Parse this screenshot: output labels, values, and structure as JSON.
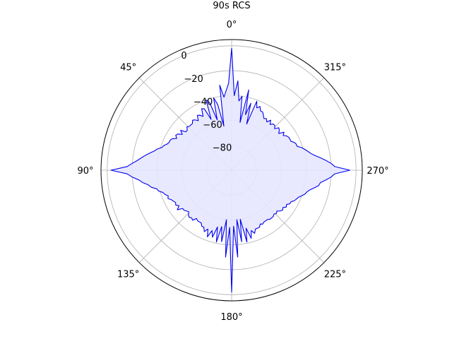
{
  "chart_data": {
    "type": "polar",
    "title": "90s RCS",
    "theta_direction": "counterclockwise",
    "theta_zero": "top",
    "theta_ticks": [
      "0°",
      "45°",
      "90°",
      "135°",
      "180°",
      "225°",
      "270°",
      "315°"
    ],
    "r_ticks": [
      "0",
      "−20",
      "−40",
      "−60",
      "−80"
    ],
    "r_tick_values": [
      0,
      -20,
      -40,
      -60,
      -80
    ],
    "rlim": [
      -100,
      5
    ],
    "grid": true,
    "fill": true,
    "colors": {
      "line": "#0000ee",
      "fill": "#e6e6ff",
      "grid": "#b0b0b0",
      "spine": "#000000"
    },
    "series": [
      {
        "theta_deg": [
          0,
          2,
          4,
          6,
          8,
          10,
          12,
          14,
          16,
          18,
          20,
          22,
          24,
          26,
          28,
          30,
          32,
          34,
          36,
          38,
          40,
          42,
          44,
          46,
          48,
          50,
          52,
          54,
          56,
          58,
          60,
          62,
          64,
          66,
          68,
          70,
          72,
          74,
          76,
          78,
          80,
          82,
          84,
          86,
          88,
          90,
          92,
          94,
          96,
          98,
          100,
          102,
          104,
          106,
          108,
          110,
          112,
          114,
          116,
          118,
          120,
          122,
          124,
          126,
          128,
          130,
          132,
          134,
          136,
          138,
          140,
          142,
          144,
          146,
          148,
          150,
          152,
          154,
          156,
          158,
          160,
          162,
          164,
          166,
          168,
          170,
          172,
          174,
          176,
          178,
          180,
          182,
          184,
          186,
          188,
          190,
          192,
          194,
          196,
          198,
          200,
          202,
          204,
          206,
          208,
          210,
          212,
          214,
          216,
          218,
          220,
          222,
          224,
          226,
          228,
          230,
          232,
          234,
          236,
          238,
          240,
          242,
          244,
          246,
          248,
          250,
          252,
          254,
          256,
          258,
          260,
          262,
          264,
          266,
          268,
          270,
          272,
          274,
          276,
          278,
          280,
          282,
          284,
          286,
          288,
          290,
          292,
          294,
          296,
          298,
          300,
          302,
          304,
          306,
          308,
          310,
          312,
          314,
          316,
          318,
          320,
          322,
          324,
          326,
          328,
          330,
          332,
          334,
          336,
          338,
          340,
          342,
          344,
          346,
          348,
          350,
          352,
          354,
          356,
          358
        ],
        "r_db": [
          -2,
          -30,
          -36,
          -41,
          -31,
          -64,
          -46,
          -40,
          -58,
          -43,
          -40,
          -56,
          -46,
          -45,
          -51,
          -49,
          -48,
          -52,
          -50,
          -49,
          -51,
          -51,
          -51,
          -50,
          -52,
          -52,
          -48,
          -51,
          -48,
          -47,
          -49,
          -46,
          -45,
          -45,
          -44,
          -42,
          -41,
          -38,
          -36,
          -33,
          -30,
          -27,
          -24,
          -20,
          -16,
          -3,
          -16,
          -20,
          -25,
          -28,
          -32,
          -34,
          -38,
          -39,
          -42,
          -43,
          -45,
          -44,
          -46,
          -47,
          -48,
          -47,
          -49,
          -46,
          -50,
          -50,
          -51,
          -52,
          -50,
          -49,
          -50,
          -49,
          -52,
          -51,
          -51,
          -51,
          -49,
          -49,
          -46,
          -49,
          -43,
          -49,
          -44,
          -53,
          -41,
          -54,
          -42,
          -60,
          -30,
          -54,
          -2,
          -55,
          -30,
          -60,
          -42,
          -60,
          -41,
          -52,
          -43,
          -49,
          -46,
          -49,
          -49,
          -49,
          -51,
          -50,
          -51,
          -51,
          -51,
          -50,
          -50,
          -50,
          -51,
          -50,
          -51,
          -49,
          -48,
          -49,
          -47,
          -48,
          -46,
          -46,
          -44,
          -43,
          -42,
          -40,
          -38,
          -37,
          -35,
          -32,
          -29,
          -28,
          -24,
          -20,
          -17,
          -5,
          -17,
          -20,
          -24,
          -28,
          -32,
          -35,
          -37,
          -39,
          -41,
          -44,
          -44,
          -45,
          -47,
          -47,
          -47,
          -48,
          -50,
          -48,
          -52,
          -50,
          -49,
          -52,
          -50,
          -50,
          -52,
          -49,
          -52,
          -50,
          -51,
          -49,
          -47,
          -47,
          -44,
          -46,
          -41,
          -61,
          -44,
          -54,
          -34,
          -61,
          -40,
          -44,
          -28,
          -40
        ]
      }
    ]
  }
}
